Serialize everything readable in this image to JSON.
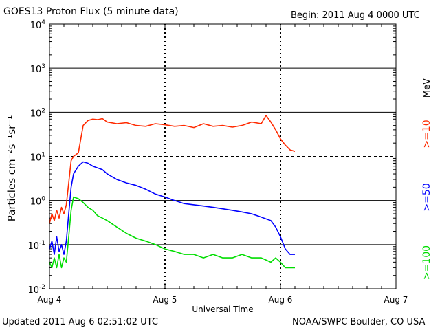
{
  "header": {
    "title": "GOES13 Proton Flux (5 minute data)",
    "begin": "Begin: 2011 Aug 4 0000 UTC"
  },
  "footer": {
    "updated": "Updated 2011 Aug  6 02:51:02 UTC",
    "credit": "NOAA/SWPC Boulder, CO USA"
  },
  "colors": {
    "p10": "#ff2a00",
    "p50": "#0000ff",
    "p100": "#00dd00",
    "grid": "#000000",
    "background": "#ffffff"
  },
  "chart_data": {
    "type": "line",
    "title": "GOES13 Proton Flux (5 minute data)",
    "xlabel": "Universal Time",
    "ylabel": "Particles cm⁻²s⁻¹sr⁻¹",
    "y_scale": "log",
    "ylim": [
      0.01,
      10000
    ],
    "xlim": [
      "2011-08-04 00:00",
      "2011-08-07 00:00"
    ],
    "x_ticks": [
      "Aug 4",
      "Aug 5",
      "Aug 6",
      "Aug 7"
    ],
    "y_ticks": [
      {
        "base": "10",
        "exp": "-2"
      },
      {
        "base": "10",
        "exp": "-1"
      },
      {
        "base": "10",
        "exp": "0"
      },
      {
        "base": "10",
        "exp": "1"
      },
      {
        "base": "10",
        "exp": "2"
      },
      {
        "base": "10",
        "exp": "3"
      },
      {
        "base": "10",
        "exp": "4"
      }
    ],
    "legend_unit": "MeV",
    "legend_placement": "right",
    "series": [
      {
        "name": ">=10",
        "color": "#ff2a00",
        "x_hours": [
          0,
          0.5,
          1.0,
          1.5,
          2.0,
          2.5,
          3.0,
          3.5,
          4.0,
          4.5,
          5.0,
          6.0,
          7.0,
          8.0,
          9.0,
          10.0,
          11.0,
          12.0,
          14.0,
          16.0,
          18.0,
          20.0,
          22.0,
          24.0,
          26.0,
          28.0,
          30.0,
          32.0,
          34.0,
          36.0,
          38.0,
          40.0,
          42.0,
          44.0,
          45.0,
          46.0,
          47.0,
          48.0,
          49.0,
          50.0,
          51.0
        ],
        "values": [
          0.3,
          0.5,
          0.35,
          0.6,
          0.4,
          0.7,
          0.5,
          0.8,
          2.5,
          8,
          10,
          12,
          50,
          65,
          70,
          68,
          72,
          60,
          55,
          58,
          50,
          48,
          55,
          52,
          48,
          50,
          45,
          55,
          48,
          50,
          46,
          50,
          60,
          55,
          85,
          60,
          40,
          25,
          18,
          14,
          13
        ]
      },
      {
        "name": ">=50",
        "color": "#0000ff",
        "x_hours": [
          0,
          0.5,
          1.0,
          1.5,
          2.0,
          2.5,
          3.0,
          3.5,
          4.0,
          4.5,
          5.0,
          6.0,
          7.0,
          8.0,
          9.0,
          10.0,
          11.0,
          12.0,
          14.0,
          16.0,
          18.0,
          20.0,
          22.0,
          24.0,
          26.0,
          28.0,
          30.0,
          32.0,
          34.0,
          36.0,
          38.0,
          40.0,
          42.0,
          44.0,
          46.0,
          47.0,
          48.0,
          49.0,
          50.0,
          51.0
        ],
        "values": [
          0.08,
          0.12,
          0.06,
          0.15,
          0.07,
          0.1,
          0.06,
          0.12,
          0.5,
          2,
          4,
          6,
          7.5,
          7,
          6,
          5.5,
          5,
          4,
          3,
          2.5,
          2.2,
          1.8,
          1.4,
          1.2,
          1.0,
          0.85,
          0.8,
          0.75,
          0.7,
          0.65,
          0.6,
          0.55,
          0.5,
          0.42,
          0.35,
          0.25,
          0.15,
          0.08,
          0.06,
          0.06
        ]
      },
      {
        "name": ">=100",
        "color": "#00dd00",
        "x_hours": [
          0,
          0.5,
          1.0,
          1.5,
          2.0,
          2.5,
          3.0,
          3.5,
          4.0,
          4.5,
          5.0,
          6.0,
          7.0,
          8.0,
          9.0,
          10.0,
          11.0,
          12.0,
          14.0,
          16.0,
          18.0,
          20.0,
          22.0,
          24.0,
          26.0,
          28.0,
          30.0,
          32.0,
          34.0,
          36.0,
          38.0,
          40.0,
          42.0,
          44.0,
          46.0,
          47.0,
          48.0,
          49.0,
          50.0,
          51.0
        ],
        "values": [
          0.04,
          0.03,
          0.05,
          0.03,
          0.06,
          0.03,
          0.05,
          0.04,
          0.15,
          0.6,
          1.2,
          1.1,
          0.9,
          0.7,
          0.6,
          0.45,
          0.4,
          0.35,
          0.25,
          0.18,
          0.14,
          0.12,
          0.1,
          0.08,
          0.07,
          0.06,
          0.06,
          0.05,
          0.06,
          0.05,
          0.05,
          0.06,
          0.05,
          0.05,
          0.04,
          0.05,
          0.04,
          0.03,
          0.03,
          0.03
        ]
      }
    ]
  }
}
